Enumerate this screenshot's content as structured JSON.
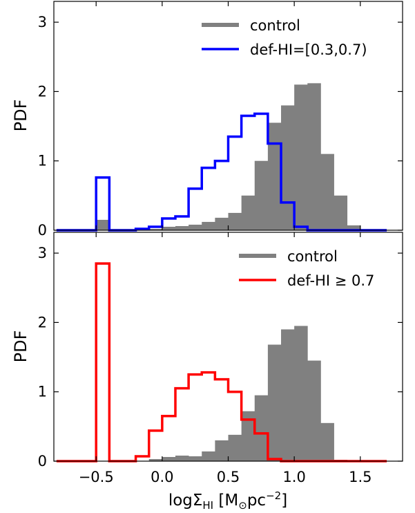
{
  "figure": {
    "xlabel_main": "logΣ",
    "xlabel_sub": "HI",
    "xlabel_units_open": " [M",
    "xlabel_sun": "⊙",
    "xlabel_units_mid": "pc",
    "xlabel_units_exp": "−2",
    "xlabel_units_close": "]"
  },
  "colors": {
    "control": "#808080",
    "top_series": "#0000ff",
    "bottom_series": "#ff0000"
  },
  "chart_data": [
    {
      "type": "bar",
      "panel": "top",
      "ylabel": "PDF",
      "xlim": [
        -0.82,
        1.82
      ],
      "ylim": [
        0,
        3.3
      ],
      "xticks": [
        -0.5,
        0.0,
        0.5,
        1.0,
        1.5
      ],
      "xtick_labels": [
        "−0.5",
        "0.0",
        "0.5",
        "1.0",
        "1.5"
      ],
      "yticks": [
        0,
        1,
        2,
        3
      ],
      "ytick_labels": [
        "0",
        "1",
        "2",
        "3"
      ],
      "legend_loc": "upper-right",
      "bin_edges": [
        -0.8,
        -0.7,
        -0.6,
        -0.5,
        -0.4,
        -0.3,
        -0.2,
        -0.1,
        0.0,
        0.1,
        0.2,
        0.3,
        0.4,
        0.5,
        0.6,
        0.7,
        0.8,
        0.9,
        1.0,
        1.1,
        1.2,
        1.3,
        1.4,
        1.5,
        1.6,
        1.7
      ],
      "series": [
        {
          "name": "control",
          "kind": "filled",
          "values": [
            0,
            0,
            0,
            0.15,
            0,
            0,
            0,
            0.02,
            0.05,
            0.06,
            0.08,
            0.12,
            0.18,
            0.25,
            0.5,
            1.0,
            1.55,
            1.8,
            2.1,
            2.12,
            1.1,
            0.5,
            0.07,
            0,
            0
          ]
        },
        {
          "name": "def-HI=[0.3,0.7)",
          "kind": "step",
          "values": [
            0,
            0,
            0,
            0.76,
            0,
            0,
            0.02,
            0.05,
            0.17,
            0.2,
            0.6,
            0.9,
            1.0,
            1.35,
            1.65,
            1.68,
            1.25,
            0.4,
            0.05,
            0,
            0,
            0,
            0,
            0,
            0
          ]
        }
      ]
    },
    {
      "type": "bar",
      "panel": "bottom",
      "ylabel": "PDF",
      "xlabel": "logΣHI [M⊙pc−2]",
      "xlim": [
        -0.82,
        1.82
      ],
      "ylim": [
        0,
        3.3
      ],
      "xticks": [
        -0.5,
        0.0,
        0.5,
        1.0,
        1.5
      ],
      "xtick_labels": [
        "−0.5",
        "0.0",
        "0.5",
        "1.0",
        "1.5"
      ],
      "yticks": [
        0,
        1,
        2,
        3
      ],
      "ytick_labels": [
        "0",
        "1",
        "2",
        "3"
      ],
      "legend_loc": "upper-right",
      "bin_edges": [
        -0.8,
        -0.7,
        -0.6,
        -0.5,
        -0.4,
        -0.3,
        -0.2,
        -0.1,
        0.0,
        0.1,
        0.2,
        0.3,
        0.4,
        0.5,
        0.6,
        0.7,
        0.8,
        0.9,
        1.0,
        1.1,
        1.2,
        1.3,
        1.4,
        1.5,
        1.6,
        1.7
      ],
      "series": [
        {
          "name": "control",
          "kind": "filled",
          "values": [
            0,
            0,
            0,
            0,
            0,
            0,
            0,
            0.03,
            0.06,
            0.08,
            0.07,
            0.14,
            0.3,
            0.38,
            0.72,
            0.95,
            1.68,
            1.9,
            1.95,
            1.45,
            0.55,
            0.02,
            0,
            0,
            0
          ]
        },
        {
          "name": "def-HI ≥ 0.7",
          "kind": "step",
          "values": [
            0,
            0,
            0,
            2.85,
            0,
            0,
            0.07,
            0.44,
            0.65,
            1.05,
            1.25,
            1.28,
            1.18,
            1.0,
            0.6,
            0.4,
            0.03,
            0,
            0,
            0,
            0,
            0,
            0,
            0,
            0
          ]
        }
      ]
    }
  ]
}
